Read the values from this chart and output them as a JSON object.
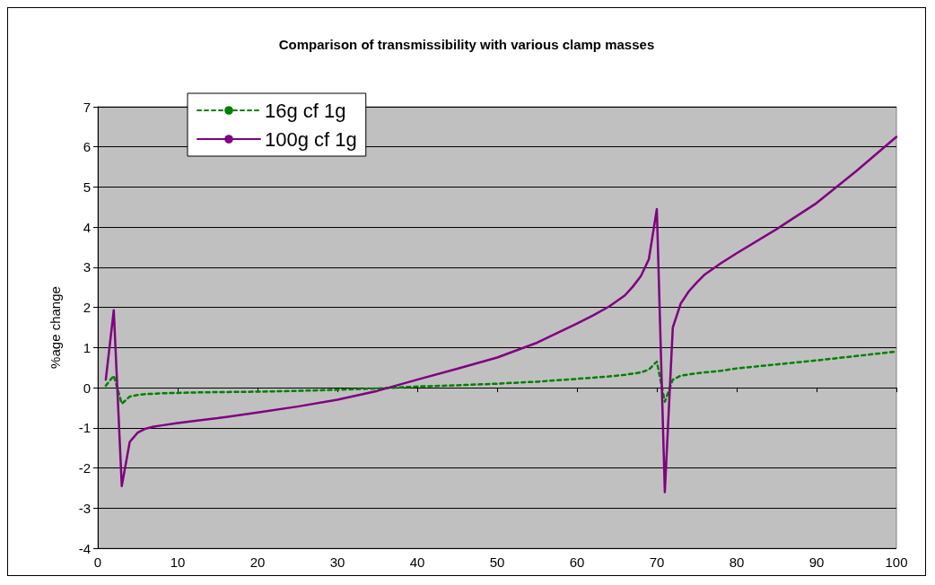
{
  "chart_data": {
    "type": "line",
    "title": "Comparison of transmissibility with various clamp masses",
    "ylabel": "%age change",
    "x": [
      1,
      2,
      3,
      4,
      5,
      6,
      7,
      8,
      10,
      12,
      15,
      20,
      25,
      30,
      35,
      40,
      45,
      50,
      55,
      60,
      62,
      64,
      66,
      67,
      68,
      69,
      70,
      71,
      72,
      73,
      74,
      75,
      76,
      78,
      80,
      85,
      90,
      95,
      100
    ],
    "series": [
      {
        "name": "16g cf 1g",
        "color": "#008000",
        "line_style": "dashed",
        "values": [
          0.05,
          0.3,
          -0.4,
          -0.22,
          -0.18,
          -0.16,
          -0.15,
          -0.14,
          -0.13,
          -0.12,
          -0.11,
          -0.1,
          -0.08,
          -0.05,
          -0.02,
          0.03,
          0.06,
          0.1,
          0.15,
          0.22,
          0.25,
          0.28,
          0.32,
          0.35,
          0.38,
          0.45,
          0.65,
          -0.35,
          0.2,
          0.3,
          0.33,
          0.36,
          0.38,
          0.42,
          0.48,
          0.58,
          0.68,
          0.79,
          0.9
        ]
      },
      {
        "name": "100g cf 1g",
        "color": "#800080",
        "line_style": "solid",
        "values": [
          0.2,
          1.93,
          -2.45,
          -1.35,
          -1.12,
          -1.02,
          -0.97,
          -0.94,
          -0.88,
          -0.83,
          -0.76,
          -0.62,
          -0.47,
          -0.3,
          -0.08,
          0.2,
          0.47,
          0.75,
          1.12,
          1.6,
          1.8,
          2.02,
          2.3,
          2.52,
          2.78,
          3.2,
          4.45,
          -2.6,
          1.5,
          2.1,
          2.4,
          2.62,
          2.82,
          3.1,
          3.35,
          3.95,
          4.6,
          5.4,
          6.25
        ]
      }
    ],
    "xlim": [
      0,
      100
    ],
    "xticks": [
      0,
      10,
      20,
      30,
      40,
      50,
      60,
      70,
      80,
      90,
      100
    ],
    "ylim": [
      -4,
      7
    ],
    "yticks": [
      -4,
      -3,
      -2,
      -1,
      0,
      1,
      2,
      3,
      4,
      5,
      6,
      7
    ],
    "grid": "y",
    "legend": "top left",
    "marker": "none"
  }
}
